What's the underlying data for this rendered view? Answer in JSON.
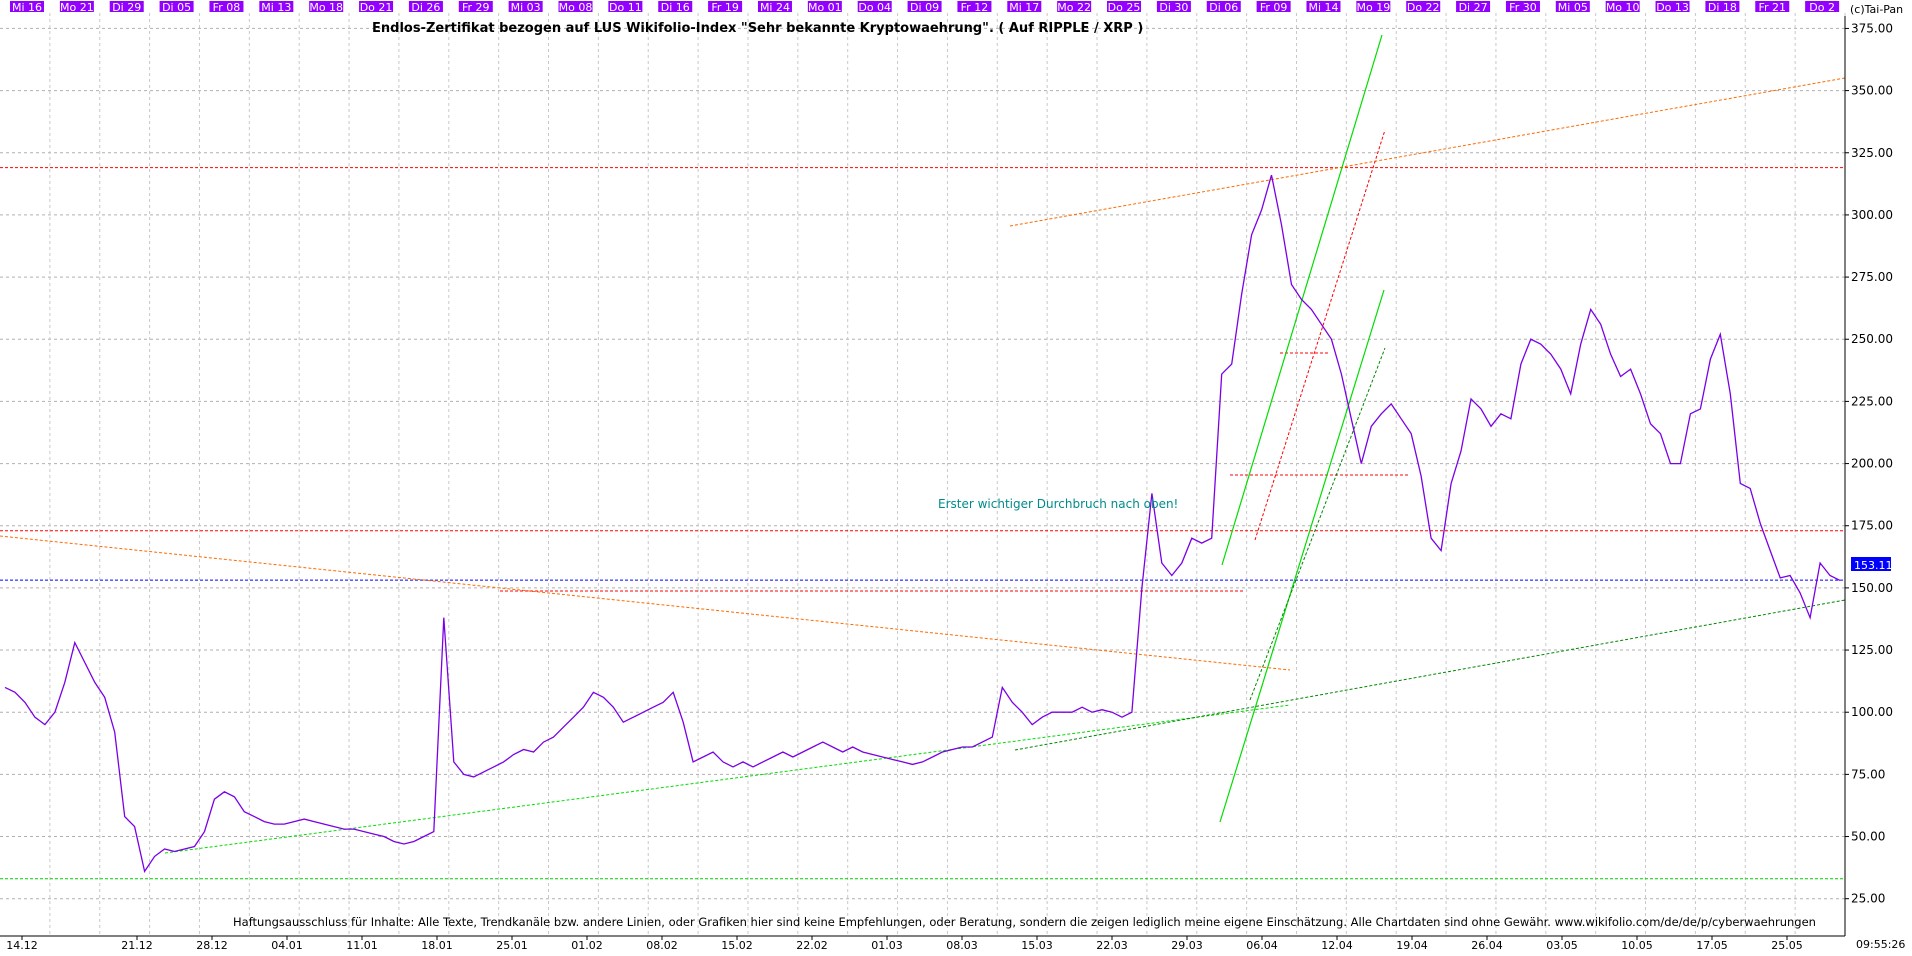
{
  "chart_data": {
    "type": "line",
    "title": "Endlos-Zertifikat bezogen auf LUS Wikifolio-Index \"Sehr bekannte Kryptowaehrung\". ( Auf RIPPLE / XRP )",
    "copyright": "(c)Tai-Pan",
    "clock": "09:55:26",
    "footer": "Haftungsausschluss für Inhalte: Alle Texte, Trendkanäle bzw. andere Linien, oder Grafiken hier sind keine Empfehlungen, oder Beratung, sondern die zeigen lediglich meine eigene Einschätzung. Alle Chartdaten sind ohne Gewähr.  www.wikifolio.com/de/de/p/cyberwaehrungen",
    "annotation": "Erster wichtiger Durchbruch nach oben!",
    "last_value_label": "153.11",
    "last_value": 153.11,
    "ylim": [
      10,
      380
    ],
    "y_ticks": [
      25,
      50,
      75,
      100,
      125,
      150,
      175,
      200,
      225,
      250,
      275,
      300,
      325,
      350,
      375
    ],
    "y_tick_labels": [
      "25.00",
      "50.00",
      "75.00",
      "100.00",
      "125.00",
      "150.00",
      "175.00",
      "200.00",
      "225.00",
      "250.00",
      "275.00",
      "300.00",
      "325.00",
      "350.00",
      "375.00"
    ],
    "top_date_labels": [
      "Mi 16",
      "Mo 21",
      "Di 29",
      "Di 05",
      "Fr 08",
      "Mi 13",
      "Mo 18",
      "Do 21",
      "Di 26",
      "Fr 29",
      "Mi 03",
      "Mo 08",
      "Do 11",
      "Di 16",
      "Fr 19",
      "Mi 24",
      "Mo 01",
      "Do 04",
      "Di 09",
      "Fr 12",
      "Mi 17",
      "Mo 22",
      "Do 25",
      "Di 30",
      "Di 06",
      "Fr 09",
      "Mi 14",
      "Mo 19",
      "Do 22",
      "Di 27",
      "Fr 30",
      "Mi 05",
      "Mo 10",
      "Do 13",
      "Di 18",
      "Fr 21",
      "Do 2"
    ],
    "bottom_date_labels": [
      "14.12",
      "21.12",
      "28.12",
      "04.01",
      "11.01",
      "18.01",
      "25.01",
      "01.02",
      "08.02",
      "15.02",
      "22.02",
      "01.03",
      "08.03",
      "15.03",
      "22.03",
      "29.03",
      "06.04",
      "12.04",
      "19.04",
      "26.04",
      "03.05",
      "10.05",
      "17.05",
      "25.05"
    ],
    "series": [
      {
        "color": "#7b00e6",
        "x": [
          0,
          1,
          2,
          3,
          4,
          5,
          6,
          7,
          8,
          9,
          10,
          11,
          12,
          13,
          14,
          15,
          16,
          17,
          18,
          19,
          20,
          21,
          22,
          23,
          24,
          25,
          26,
          27,
          28,
          29,
          30,
          31,
          32,
          33,
          34,
          35,
          36,
          37,
          38,
          39,
          40,
          41,
          42,
          43,
          44,
          45,
          46,
          47,
          48,
          49,
          50,
          51,
          52,
          53,
          54,
          55,
          56,
          57,
          58,
          59,
          60,
          61,
          62,
          63,
          64,
          65,
          66,
          67,
          68,
          69,
          70,
          71,
          72,
          73,
          74,
          75,
          76,
          77,
          78,
          79,
          80,
          81,
          82,
          83,
          84,
          85,
          86,
          87,
          88,
          89,
          90,
          91,
          92,
          93,
          94,
          95,
          96,
          97,
          98,
          99,
          100,
          101,
          102,
          103,
          104,
          105,
          106,
          107,
          108,
          109,
          110,
          111,
          112,
          113,
          114,
          115,
          116,
          117,
          118,
          119,
          120,
          121,
          122,
          123,
          124,
          125,
          126,
          127,
          128,
          129,
          130,
          131,
          132,
          133,
          134,
          135,
          136,
          137,
          138,
          139,
          140,
          141,
          142,
          143,
          144,
          145,
          146,
          147,
          148,
          149,
          150,
          151,
          152,
          153,
          154,
          155,
          156,
          157,
          158,
          159,
          160,
          161,
          162,
          163,
          164,
          165,
          166,
          167,
          168,
          169,
          170,
          171,
          172,
          173,
          174,
          175,
          176,
          177,
          178,
          179,
          180,
          181,
          182,
          183,
          184
        ],
        "y": [
          110,
          108,
          104,
          98,
          95,
          100,
          112,
          128,
          120,
          112,
          106,
          92,
          58,
          54,
          36,
          42,
          45,
          44,
          45,
          46,
          52,
          65,
          68,
          66,
          60,
          58,
          56,
          55,
          55,
          56,
          57,
          56,
          55,
          54,
          53,
          53,
          52,
          51,
          50,
          48,
          47,
          48,
          50,
          52,
          138,
          80,
          75,
          74,
          76,
          78,
          80,
          83,
          85,
          84,
          88,
          90,
          94,
          98,
          102,
          108,
          106,
          102,
          96,
          98,
          100,
          102,
          104,
          108,
          96,
          80,
          82,
          84,
          80,
          78,
          80,
          78,
          80,
          82,
          84,
          82,
          84,
          86,
          88,
          86,
          84,
          86,
          84,
          83,
          82,
          81,
          80,
          79,
          80,
          82,
          84,
          85,
          86,
          86,
          88,
          90,
          110,
          104,
          100,
          95,
          98,
          100,
          100,
          100,
          102,
          100,
          101,
          100,
          98,
          100,
          150,
          188,
          160,
          155,
          160,
          170,
          168,
          170,
          236,
          240,
          268,
          292,
          302,
          316,
          296,
          272,
          266,
          262,
          256,
          250,
          236,
          218,
          200,
          215,
          220,
          224,
          218,
          212,
          195,
          170,
          165,
          192,
          205,
          226,
          222,
          215,
          220,
          218,
          240,
          250,
          248,
          244,
          238,
          228,
          248,
          262,
          256,
          244,
          235,
          238,
          228,
          216,
          212,
          200,
          200,
          220,
          222,
          242,
          252,
          228,
          192,
          190,
          176,
          165,
          154,
          155,
          148,
          138,
          160,
          155,
          153
        ]
      }
    ],
    "horizontal_lines": [
      {
        "color": "#ff0000",
        "value": 319
      },
      {
        "color": "#ff0000",
        "value": 173
      },
      {
        "color": "#0000ff",
        "value": 153.11
      },
      {
        "color": "#00cc00",
        "value": 33
      }
    ],
    "grid": true,
    "legend": "none"
  }
}
